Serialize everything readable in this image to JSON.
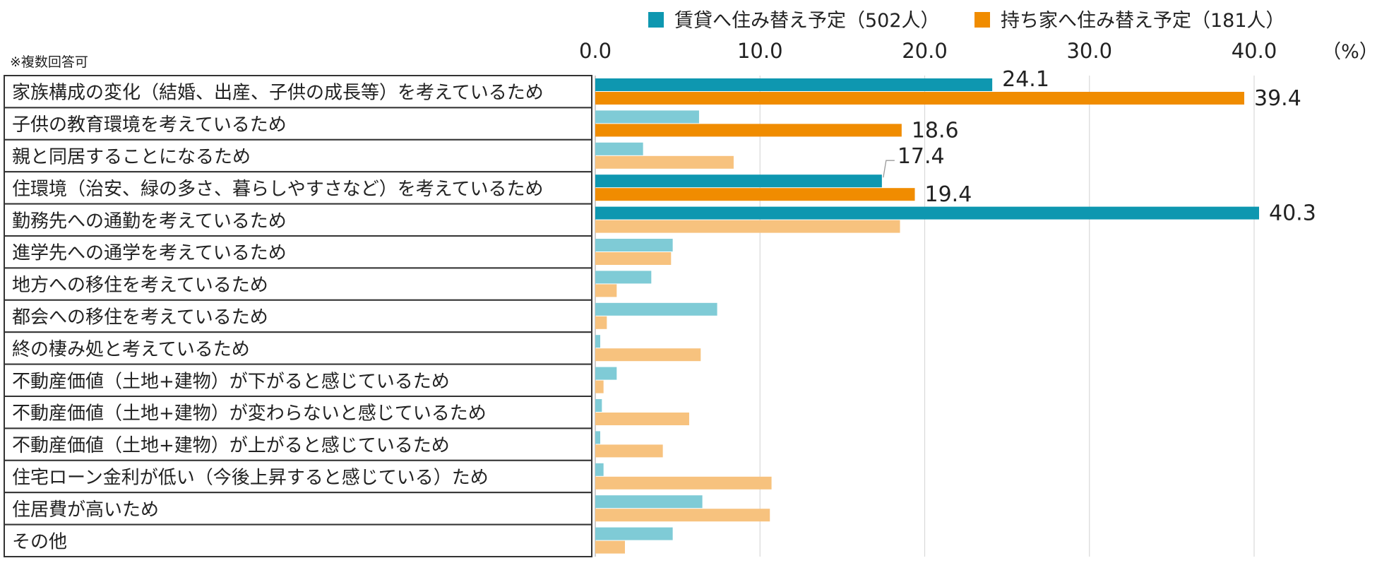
{
  "chart_data": {
    "type": "bar",
    "orientation": "horizontal",
    "title": "",
    "note": "※複数回答可",
    "unit_label": "（%）",
    "xlim": [
      0,
      40
    ],
    "ticks": [
      0,
      10,
      20,
      30,
      40
    ],
    "tick_labels": [
      "0.0",
      "10.0",
      "20.0",
      "30.0",
      "40.0"
    ],
    "grid": true,
    "legend_position": "top",
    "categories": [
      "家族構成の変化（結婚、出産、子供の成長等）を考えているため",
      "子供の教育環境を考えているため",
      "親と同居することになるため",
      "住環境（治安、緑の多さ、暮らしやすさなど）を考えているため",
      "勤務先への通勤を考えているため",
      "進学先への通学を考えているため",
      "地方への移住を考えているため",
      "都会への移住を考えているため",
      "終の棲み処と考えているため",
      "不動産価値（土地+建物）が下がると感じているため",
      "不動産価値（土地+建物）が変わらないと感じているため",
      "不動産価値（土地+建物）が上がると感じているため",
      "住宅ローン金利が低い（今後上昇すると感じている）ため",
      "住居費が高いため",
      "その他"
    ],
    "series": [
      {
        "name": "賃貸へ住み替え予定（502人）",
        "color": "#0e97b0",
        "light_color": "#7fcbd6",
        "values": [
          24.1,
          6.3,
          2.9,
          17.4,
          40.3,
          4.7,
          3.4,
          7.4,
          0.3,
          1.3,
          0.4,
          0.3,
          0.5,
          6.5,
          4.7
        ],
        "labeled": [
          true,
          false,
          false,
          true,
          true,
          false,
          false,
          false,
          false,
          false,
          false,
          false,
          false,
          false,
          false
        ]
      },
      {
        "name": "持ち家へ住み替え予定（181人）",
        "color": "#f08c00",
        "light_color": "#f7c27e",
        "values": [
          39.4,
          18.6,
          8.4,
          19.4,
          18.5,
          4.6,
          1.3,
          0.7,
          6.4,
          0.5,
          5.7,
          4.1,
          10.7,
          10.6,
          1.8
        ],
        "labeled": [
          true,
          true,
          false,
          true,
          false,
          false,
          false,
          false,
          false,
          false,
          false,
          false,
          false,
          false,
          false
        ]
      }
    ]
  }
}
